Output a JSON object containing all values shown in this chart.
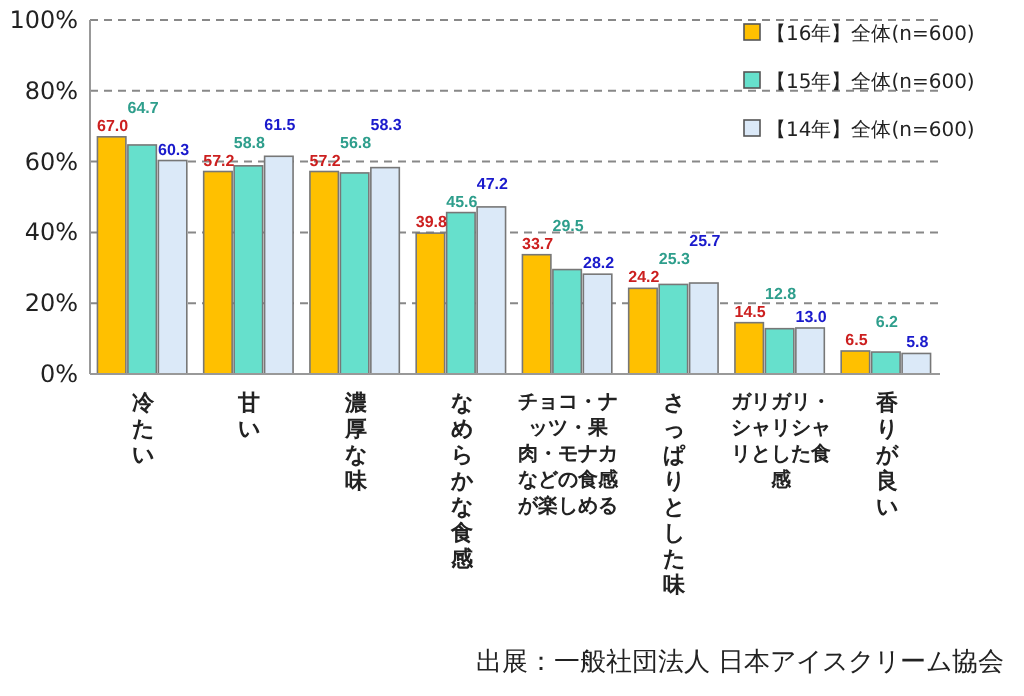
{
  "chart_data": {
    "type": "bar",
    "categories": [
      "冷たい",
      "甘い",
      "濃厚な味",
      "なめらかな食感",
      "チョコ・ナッツ・果肉・モナカなどの食感が楽しめる",
      "さっぱりとした味",
      "ガリガリ・シャリシャリとした食感",
      "香りが良い"
    ],
    "series": [
      {
        "name": "【16年】全体(n=600)",
        "color": "#ffc000",
        "values": [
          67.0,
          57.2,
          57.2,
          39.8,
          33.7,
          24.2,
          14.5,
          6.5
        ],
        "value_labels": [
          "67.0",
          "57.2",
          "57.2",
          "39.8",
          "33.7",
          "24.2",
          "14.5",
          "6.5"
        ]
      },
      {
        "name": "【15年】全体(n=600)",
        "color": "#66e0cc",
        "values": [
          64.7,
          58.8,
          56.8,
          45.6,
          29.5,
          25.3,
          12.8,
          6.2
        ],
        "value_labels": [
          "64.7",
          "58.8",
          "56.8",
          "45.6",
          "29.5",
          "25.3",
          "12.8",
          "6.2"
        ]
      },
      {
        "name": "【14年】全体(n=600)",
        "color": "#dbe9f8",
        "values": [
          60.3,
          61.5,
          58.3,
          47.2,
          28.2,
          25.7,
          13.0,
          5.8
        ],
        "value_labels": [
          "60.3",
          "61.5",
          "58.3",
          "47.2",
          "28.2",
          "25.7",
          "13.0",
          "5.8"
        ]
      }
    ],
    "ylim": [
      0,
      100
    ],
    "yticks": [
      {
        "value": 0,
        "label": "0%"
      },
      {
        "value": 20,
        "label": "20%"
      },
      {
        "value": 40,
        "label": "40%"
      },
      {
        "value": 60,
        "label": "60%"
      },
      {
        "value": 80,
        "label": "80%"
      },
      {
        "value": 100,
        "label": "100%"
      }
    ],
    "grid": "y",
    "legend": "top right",
    "annotations": [
      "出展：一般社団法人 日本アイスクリーム協会"
    ]
  }
}
